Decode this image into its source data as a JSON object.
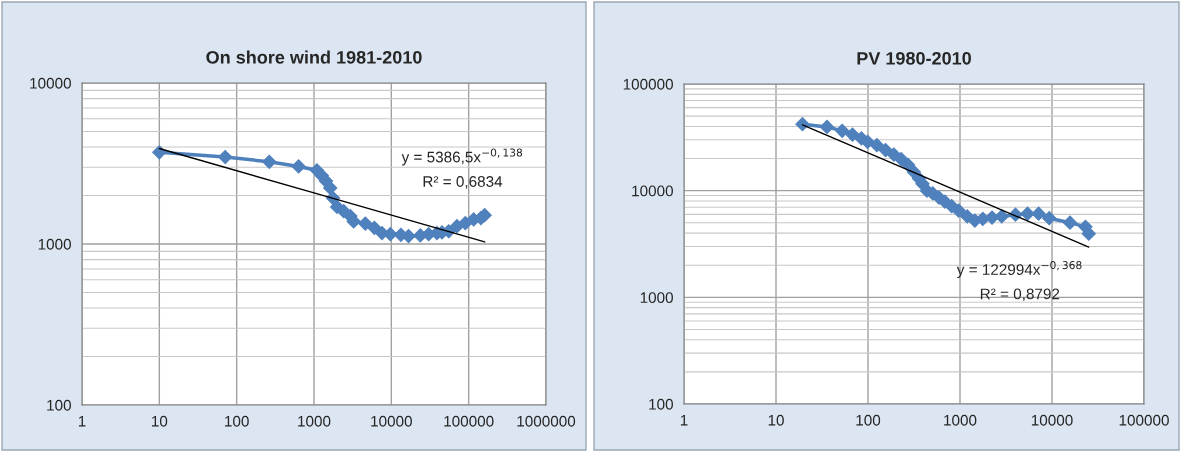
{
  "chart_data": [
    {
      "type": "line",
      "title": "On shore wind 1981-2010",
      "log": "xy",
      "grid": true,
      "xlim": [
        1,
        1000000
      ],
      "xticks": [
        1,
        10,
        100,
        1000,
        10000,
        100000,
        1000000
      ],
      "ylim": [
        100,
        10000
      ],
      "yticks": [
        100,
        1000,
        10000
      ],
      "annotations": [
        "y = 5386,5x$^{−0,138}$",
        "R² = 0,6834"
      ],
      "series": [
        {
          "color": "#4f81bd",
          "marker": "diamond",
          "line_style": "solid",
          "x": [
            10,
            71,
            264,
            632,
            1090,
            1260,
            1430,
            1620,
            1760,
            1990,
            2420,
            2950,
            3260,
            4610,
            6030,
            7570,
            9700,
            13300,
            16700,
            23700,
            30400,
            38900,
            45200,
            55100,
            70600,
            90600,
            116000,
            144000,
            161000
          ],
          "values": [
            3710,
            3470,
            3240,
            3030,
            2870,
            2660,
            2460,
            2230,
            1930,
            1700,
            1600,
            1490,
            1380,
            1340,
            1260,
            1170,
            1150,
            1140,
            1120,
            1130,
            1150,
            1170,
            1180,
            1200,
            1290,
            1350,
            1420,
            1450,
            1510
          ]
        },
        {
          "type": "line",
          "color": "#000000",
          "marker": "none",
          "line_style": "solid",
          "x": [
            10,
            1000,
            161000
          ],
          "values": [
            3920,
            2077,
            1030
          ]
        }
      ]
    },
    {
      "type": "line",
      "title": "PV 1980-2010",
      "log": "xy",
      "grid": true,
      "xlim": [
        1,
        100000
      ],
      "xticks": [
        1,
        10,
        100,
        1000,
        10000,
        100000
      ],
      "ylim": [
        100,
        100000
      ],
      "yticks": [
        100,
        1000,
        10000,
        100000
      ],
      "annotations": [
        "y = 122994x$^{−0,368}$",
        "R² = 0,8792"
      ],
      "series": [
        {
          "color": "#4f81bd",
          "marker": "diamond",
          "line_style": "solid",
          "x": [
            19.4,
            35.8,
            52.4,
            67.8,
            84.9,
            99,
            125,
            155,
            191,
            229,
            272,
            315,
            358,
            391,
            437,
            506,
            591,
            685,
            813,
            966,
            1200,
            1450,
            1770,
            2230,
            2840,
            4010,
            5420,
            7150,
            9340,
            15700,
            23100,
            25100
          ],
          "values": [
            42000,
            39600,
            36400,
            33600,
            30900,
            28700,
            26700,
            24000,
            21800,
            19800,
            17500,
            15000,
            13000,
            11600,
            10000,
            9420,
            8610,
            7880,
            7160,
            6500,
            5730,
            5240,
            5430,
            5600,
            5730,
            5950,
            6080,
            6080,
            5520,
            5010,
            4580,
            3950
          ]
        },
        {
          "type": "line",
          "color": "#000000",
          "marker": "none",
          "line_style": "solid",
          "x": [
            19.4,
            1000,
            25100
          ],
          "values": [
            41300,
            9680,
            2960
          ]
        }
      ]
    }
  ]
}
